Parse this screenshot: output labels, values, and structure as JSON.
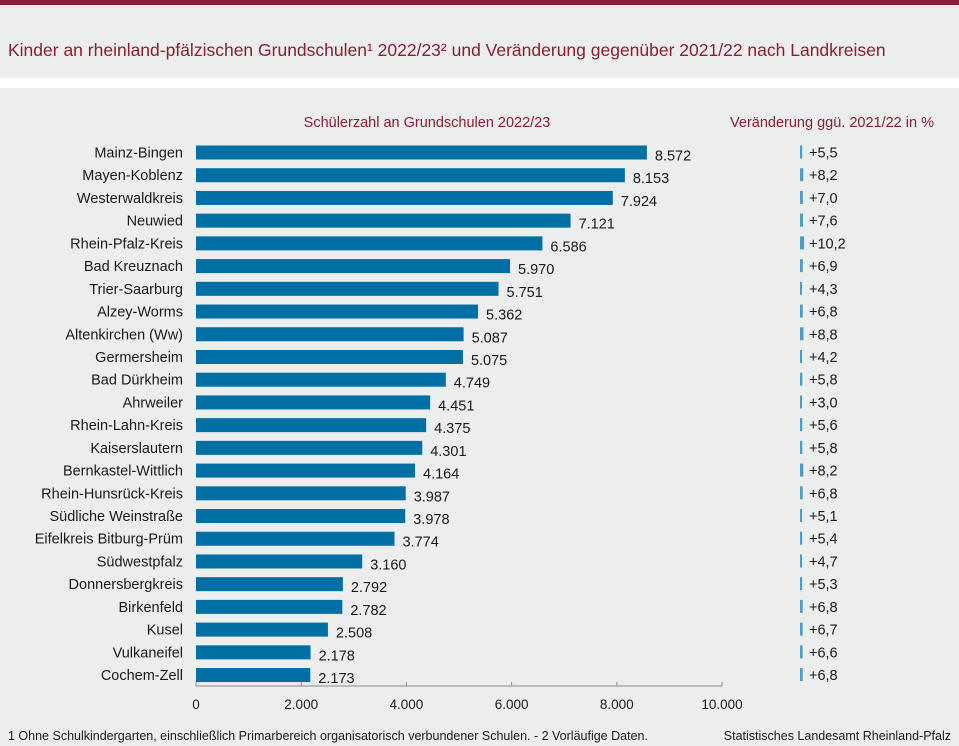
{
  "header": {
    "title": "Kinder an rheinland-pfälzischen Grundschulen¹ 2022/23² und Veränderung gegenüber 2021/22 nach Landkreisen"
  },
  "colors": {
    "accent": "#8c1d32",
    "bar": "#0070a4",
    "change_bar": "#4a9ec4",
    "background": "#eceeed"
  },
  "chart_data": {
    "type": "bar",
    "orientation": "horizontal",
    "title": "Kinder an rheinland-pfälzischen Grundschulen¹ 2022/23² und Veränderung gegenüber 2021/22 nach Landkreisen",
    "left_header": "Schülerzahl an Grundschulen 2022/23",
    "right_header": "Veränderung ggü. 2021/22 in %",
    "categories": [
      "Mainz-Bingen",
      "Mayen-Koblenz",
      "Westerwaldkreis",
      "Neuwied",
      "Rhein-Pfalz-Kreis",
      "Bad Kreuznach",
      "Trier-Saarburg",
      "Alzey-Worms",
      "Altenkirchen (Ww)",
      "Germersheim",
      "Bad Dürkheim",
      "Ahrweiler",
      "Rhein-Lahn-Kreis",
      "Kaiserslautern",
      "Bernkastel-Wittlich",
      "Rhein-Hunsrück-Kreis",
      "Südliche Weinstraße",
      "Eifelkreis Bitburg-Prüm",
      "Südwestpfalz",
      "Donnersbergkreis",
      "Birkenfeld",
      "Kusel",
      "Vulkaneifel",
      "Cochem-Zell"
    ],
    "series": [
      {
        "name": "Schülerzahl an Grundschulen 2022/23",
        "values": [
          8572,
          8153,
          7924,
          7121,
          6586,
          5970,
          5751,
          5362,
          5087,
          5075,
          4749,
          4451,
          4375,
          4301,
          4164,
          3987,
          3978,
          3774,
          3160,
          2792,
          2782,
          2508,
          2178,
          2173
        ],
        "labels": [
          "8.572",
          "8.153",
          "7.924",
          "7.121",
          "6.586",
          "5.970",
          "5.751",
          "5.362",
          "5.087",
          "5.075",
          "4.749",
          "4.451",
          "4.375",
          "4.301",
          "4.164",
          "3.987",
          "3.978",
          "3.774",
          "3.160",
          "2.792",
          "2.782",
          "2.508",
          "2.178",
          "2.173"
        ]
      },
      {
        "name": "Veränderung ggü. 2021/22 in %",
        "values": [
          5.5,
          8.2,
          7.0,
          7.6,
          10.2,
          6.9,
          4.3,
          6.8,
          8.8,
          4.2,
          5.8,
          3.0,
          5.6,
          5.8,
          8.2,
          6.8,
          5.1,
          5.4,
          4.7,
          5.3,
          6.8,
          6.7,
          6.6,
          6.8
        ],
        "labels": [
          "+5,5",
          "+8,2",
          "+7,0",
          "+7,6",
          "+10,2",
          "+6,9",
          "+4,3",
          "+6,8",
          "+8,8",
          "+4,2",
          "+5,8",
          "+3,0",
          "+5,6",
          "+5,8",
          "+8,2",
          "+6,8",
          "+5,1",
          "+5,4",
          "+4,7",
          "+5,3",
          "+6,8",
          "+6,7",
          "+6,6",
          "+6,8"
        ]
      }
    ],
    "xlim": [
      0,
      10000
    ],
    "xticks": [
      0,
      2000,
      4000,
      6000,
      8000,
      10000
    ],
    "xtick_labels": [
      "0",
      "2.000",
      "4.000",
      "6.000",
      "8.000",
      "10.000"
    ],
    "xlabel": "",
    "ylabel": "",
    "grid": false,
    "legend": "none"
  },
  "footer": {
    "note": "1 Ohne Schulkindergarten, einschließlich Primarbereich organisatorisch verbundener Schulen. - 2 Vorläufige Daten.",
    "source": "Statistisches Landesamt Rheinland-Pfalz"
  }
}
